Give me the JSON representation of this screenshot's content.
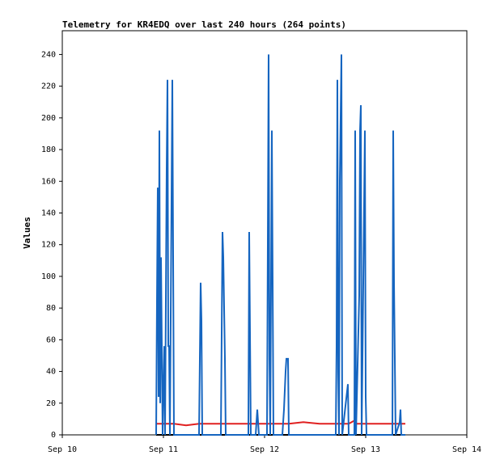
{
  "chart_data": {
    "type": "line",
    "title": "Telemetry for KR4EDQ over last 240 hours (264 points)",
    "y_label": "Values",
    "x": [
      0.928,
      0.936,
      0.944,
      0.952,
      0.96,
      0.968,
      0.976,
      0.984,
      0.992,
      1.008,
      1.016,
      1.032,
      1.04,
      1.048,
      1.056,
      1.064,
      1.088,
      1.096,
      1.104,
      1.224,
      1.352,
      1.36,
      1.368,
      1.376,
      1.384,
      1.504,
      1.568,
      1.576,
      1.584,
      1.592,
      1.6,
      1.608,
      1.616,
      1.744,
      1.84,
      1.848,
      1.856,
      1.864,
      1.912,
      1.92,
      1.928,
      1.936,
      1.944,
      2.024,
      2.032,
      2.04,
      2.048,
      2.056,
      2.072,
      2.08,
      2.088,
      2.176,
      2.184,
      2.192,
      2.2,
      2.208,
      2.216,
      2.232,
      2.24,
      2.384,
      2.544,
      2.704,
      2.712,
      2.72,
      2.728,
      2.736,
      2.744,
      2.76,
      2.768,
      2.824,
      2.832,
      2.888,
      2.896,
      2.904,
      2.936,
      2.944,
      2.952,
      2.96,
      2.976,
      2.992,
      3.0,
      3.008,
      3.144,
      3.264,
      3.272,
      3.28,
      3.288,
      3.296,
      3.336,
      3.344,
      3.352,
      3.392
    ],
    "series": [
      {
        "color": "#1565c0",
        "values": [
          0,
          84,
          156,
          24,
          192,
          20,
          112,
          56,
          0,
          56,
          0,
          168,
          224,
          56,
          56,
          0,
          224,
          112,
          0,
          0,
          0,
          48,
          96,
          72,
          0,
          0,
          0,
          64,
          128,
          112,
          80,
          48,
          0,
          0,
          0,
          128,
          64,
          0,
          0,
          8,
          16,
          8,
          0,
          0,
          120,
          240,
          48,
          0,
          192,
          96,
          0,
          0,
          8,
          16,
          28,
          40,
          48,
          48,
          0,
          0,
          0,
          0,
          56,
          224,
          40,
          0,
          160,
          240,
          0,
          32,
          0,
          0,
          192,
          0,
          88,
          192,
          208,
          0,
          96,
          192,
          24,
          0,
          0,
          0,
          192,
          96,
          48,
          0,
          8,
          16,
          0,
          0
        ]
      },
      {
        "color": "#e02020",
        "values": [
          7,
          7,
          7,
          7,
          7,
          7,
          7,
          7,
          7,
          7,
          7,
          7,
          7,
          7,
          7,
          7,
          7,
          7,
          7,
          6,
          7,
          7,
          7,
          7,
          7,
          7,
          7,
          7,
          7,
          7,
          7,
          7,
          7,
          7,
          7,
          7,
          7,
          7,
          7,
          7,
          7,
          7,
          7,
          7,
          7,
          7,
          7,
          7,
          7,
          7,
          7,
          7,
          7,
          7,
          7,
          7,
          7,
          7,
          7,
          8,
          7,
          7,
          7,
          7,
          7,
          7,
          7,
          7,
          7,
          7,
          7,
          9,
          8,
          7,
          7,
          7,
          7,
          7,
          7,
          7,
          7,
          7,
          7,
          7,
          7,
          7,
          7,
          7,
          7,
          7,
          7,
          7
        ]
      },
      {
        "color": "#000000",
        "values": [
          0,
          0,
          0,
          0,
          0,
          0,
          0,
          0,
          0,
          0,
          0,
          0,
          0,
          0,
          0,
          0,
          0,
          0,
          0,
          0,
          0,
          0,
          0,
          0,
          0,
          0,
          0,
          0,
          0,
          0,
          0,
          0,
          0,
          0,
          0,
          0,
          0,
          0,
          0,
          0,
          0,
          0,
          0,
          0,
          0,
          0,
          0,
          0,
          0,
          0,
          0,
          0,
          0,
          0,
          0,
          0,
          0,
          0,
          0,
          0,
          0,
          0,
          0,
          0,
          0,
          0,
          0,
          0,
          0,
          0,
          0,
          0,
          0,
          0,
          0,
          0,
          0,
          0,
          0,
          0,
          0,
          0,
          0,
          0,
          0,
          0,
          0,
          0,
          0,
          0,
          0,
          0
        ]
      }
    ],
    "xlim": [
      0,
      4
    ],
    "xticks": [
      {
        "value": 0,
        "label": "Sep 10"
      },
      {
        "value": 1,
        "label": "Sep 11"
      },
      {
        "value": 2,
        "label": "Sep 12"
      },
      {
        "value": 3,
        "label": "Sep 13"
      },
      {
        "value": 4,
        "label": "Sep 14"
      }
    ],
    "ylim": [
      0,
      255
    ],
    "yticks": [
      0,
      20,
      40,
      60,
      80,
      100,
      120,
      140,
      160,
      180,
      200,
      220,
      240
    ]
  }
}
